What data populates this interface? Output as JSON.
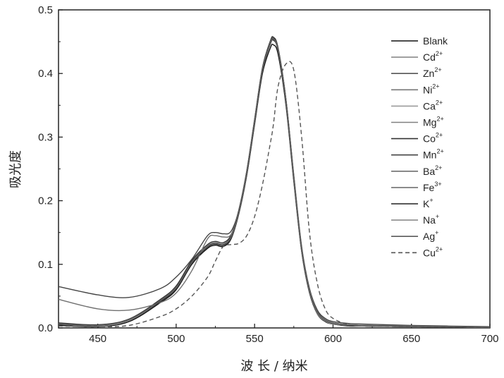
{
  "chart_data": {
    "type": "line",
    "xlabel": "波 长 / 纳米",
    "ylabel": "吸光度",
    "xlim": [
      425,
      700
    ],
    "ylim": [
      0,
      0.5
    ],
    "xticks": [
      450,
      500,
      550,
      600,
      650,
      700
    ],
    "yticks": [
      0.0,
      0.1,
      0.2,
      0.3,
      0.4,
      0.5
    ],
    "xtick_labels": [
      "450",
      "500",
      "550",
      "600",
      "650",
      "700"
    ],
    "ytick_labels": [
      "0.0",
      "0.1",
      "0.2",
      "0.3",
      "0.4",
      "0.5"
    ],
    "grid": false,
    "legend_position": "right",
    "x": [
      425,
      450,
      470,
      490,
      500,
      510,
      520,
      525,
      530,
      535,
      540,
      545,
      550,
      555,
      560,
      562,
      565,
      570,
      575,
      580,
      585,
      590,
      595,
      600,
      610,
      620,
      650,
      700
    ],
    "series": [
      {
        "name": "Blank",
        "base": "Blank",
        "sup": "",
        "color": "#111111",
        "dash": "",
        "values": [
          0.004,
          0.002,
          0.01,
          0.04,
          0.06,
          0.1,
          0.125,
          0.13,
          0.128,
          0.14,
          0.18,
          0.24,
          0.32,
          0.4,
          0.44,
          0.445,
          0.43,
          0.35,
          0.23,
          0.12,
          0.055,
          0.022,
          0.01,
          0.006,
          0.003,
          0.003,
          0.002,
          0.001
        ]
      },
      {
        "name": "Cd2+",
        "base": "Cd",
        "sup": "2+",
        "color": "#8a8a8a",
        "dash": "",
        "values": [
          0.005,
          0.003,
          0.012,
          0.042,
          0.062,
          0.102,
          0.127,
          0.132,
          0.13,
          0.142,
          0.182,
          0.243,
          0.324,
          0.405,
          0.446,
          0.452,
          0.436,
          0.355,
          0.234,
          0.122,
          0.056,
          0.023,
          0.011,
          0.006,
          0.004,
          0.003,
          0.002,
          0.001
        ]
      },
      {
        "name": "Zn2+",
        "base": "Zn",
        "sup": "2+",
        "color": "#555555",
        "dash": "",
        "values": [
          0.006,
          0.004,
          0.013,
          0.043,
          0.063,
          0.103,
          0.128,
          0.133,
          0.131,
          0.143,
          0.183,
          0.244,
          0.325,
          0.406,
          0.447,
          0.453,
          0.437,
          0.356,
          0.235,
          0.123,
          0.057,
          0.024,
          0.012,
          0.007,
          0.004,
          0.003,
          0.002,
          0.001
        ]
      },
      {
        "name": "Ni2+",
        "base": "Ni",
        "sup": "2+",
        "color": "#777777",
        "dash": "",
        "values": [
          0.007,
          0.004,
          0.013,
          0.044,
          0.064,
          0.104,
          0.129,
          0.134,
          0.132,
          0.144,
          0.184,
          0.245,
          0.326,
          0.407,
          0.449,
          0.455,
          0.438,
          0.357,
          0.236,
          0.124,
          0.058,
          0.024,
          0.012,
          0.007,
          0.004,
          0.003,
          0.002,
          0.001
        ]
      },
      {
        "name": "Ca2+",
        "base": "Ca",
        "sup": "2+",
        "color": "#9a9a9a",
        "dash": "",
        "values": [
          0.006,
          0.003,
          0.012,
          0.043,
          0.063,
          0.103,
          0.128,
          0.133,
          0.131,
          0.143,
          0.183,
          0.244,
          0.325,
          0.406,
          0.448,
          0.454,
          0.437,
          0.356,
          0.235,
          0.123,
          0.057,
          0.023,
          0.011,
          0.006,
          0.004,
          0.003,
          0.002,
          0.001
        ]
      },
      {
        "name": "Mg2+",
        "base": "Mg",
        "sup": "2+",
        "color": "#808080",
        "dash": "",
        "values": [
          0.005,
          0.003,
          0.012,
          0.042,
          0.062,
          0.102,
          0.127,
          0.132,
          0.13,
          0.142,
          0.182,
          0.243,
          0.324,
          0.405,
          0.447,
          0.453,
          0.436,
          0.355,
          0.234,
          0.122,
          0.056,
          0.023,
          0.011,
          0.006,
          0.004,
          0.003,
          0.002,
          0.001
        ]
      },
      {
        "name": "Co2+",
        "base": "Co",
        "sup": "2+",
        "color": "#333333",
        "dash": "",
        "values": [
          0.008,
          0.005,
          0.014,
          0.045,
          0.066,
          0.106,
          0.131,
          0.136,
          0.134,
          0.146,
          0.186,
          0.247,
          0.328,
          0.409,
          0.451,
          0.457,
          0.44,
          0.359,
          0.238,
          0.126,
          0.06,
          0.026,
          0.013,
          0.008,
          0.005,
          0.004,
          0.003,
          0.001
        ]
      },
      {
        "name": "Mn2+",
        "base": "Mn",
        "sup": "2+",
        "color": "#444444",
        "dash": "",
        "values": [
          0.065,
          0.052,
          0.048,
          0.062,
          0.08,
          0.108,
          0.145,
          0.15,
          0.148,
          0.152,
          0.185,
          0.245,
          0.326,
          0.407,
          0.449,
          0.455,
          0.439,
          0.359,
          0.24,
          0.128,
          0.062,
          0.028,
          0.015,
          0.01,
          0.007,
          0.006,
          0.004,
          0.002
        ]
      },
      {
        "name": "Ba2+",
        "base": "Ba",
        "sup": "2+",
        "color": "#6e6e6e",
        "dash": "",
        "values": [
          0.006,
          0.004,
          0.013,
          0.043,
          0.063,
          0.103,
          0.128,
          0.133,
          0.131,
          0.143,
          0.183,
          0.244,
          0.325,
          0.406,
          0.448,
          0.454,
          0.437,
          0.356,
          0.235,
          0.123,
          0.057,
          0.024,
          0.012,
          0.007,
          0.004,
          0.003,
          0.002,
          0.001
        ]
      },
      {
        "name": "Fe3+",
        "base": "Fe",
        "sup": "3+",
        "color": "#707070",
        "dash": "",
        "values": [
          0.045,
          0.03,
          0.028,
          0.04,
          0.055,
          0.09,
          0.14,
          0.145,
          0.143,
          0.147,
          0.182,
          0.243,
          0.324,
          0.405,
          0.446,
          0.452,
          0.436,
          0.356,
          0.237,
          0.125,
          0.059,
          0.025,
          0.013,
          0.008,
          0.005,
          0.004,
          0.003,
          0.001
        ]
      },
      {
        "name": "K+",
        "base": "K",
        "sup": "+",
        "color": "#222222",
        "dash": "",
        "values": [
          0.005,
          0.003,
          0.012,
          0.042,
          0.062,
          0.102,
          0.127,
          0.132,
          0.13,
          0.142,
          0.182,
          0.243,
          0.324,
          0.405,
          0.447,
          0.453,
          0.436,
          0.355,
          0.234,
          0.122,
          0.056,
          0.023,
          0.011,
          0.006,
          0.004,
          0.003,
          0.002,
          0.001
        ]
      },
      {
        "name": "Na+",
        "base": "Na",
        "sup": "+",
        "color": "#8c8c8c",
        "dash": "",
        "values": [
          0.006,
          0.003,
          0.012,
          0.043,
          0.063,
          0.103,
          0.128,
          0.133,
          0.131,
          0.143,
          0.183,
          0.244,
          0.325,
          0.406,
          0.448,
          0.454,
          0.437,
          0.356,
          0.235,
          0.123,
          0.057,
          0.023,
          0.011,
          0.006,
          0.004,
          0.003,
          0.002,
          0.001
        ]
      },
      {
        "name": "Ag+",
        "base": "Ag",
        "sup": "+",
        "color": "#5a5a5a",
        "dash": "",
        "values": [
          0.006,
          0.004,
          0.013,
          0.043,
          0.063,
          0.103,
          0.128,
          0.133,
          0.131,
          0.143,
          0.183,
          0.244,
          0.325,
          0.406,
          0.448,
          0.454,
          0.437,
          0.356,
          0.235,
          0.123,
          0.057,
          0.024,
          0.012,
          0.007,
          0.004,
          0.003,
          0.002,
          0.001
        ]
      },
      {
        "name": "Cu2+",
        "base": "Cu",
        "sup": "2+",
        "color": "#555555",
        "dash": "6,4",
        "values": [
          0.003,
          0.002,
          0.004,
          0.018,
          0.03,
          0.05,
          0.08,
          0.105,
          0.128,
          0.131,
          0.133,
          0.145,
          0.175,
          0.225,
          0.29,
          0.32,
          0.38,
          0.415,
          0.405,
          0.3,
          0.15,
          0.07,
          0.03,
          0.015,
          0.005,
          0.003,
          0.002,
          0.001
        ]
      }
    ]
  }
}
